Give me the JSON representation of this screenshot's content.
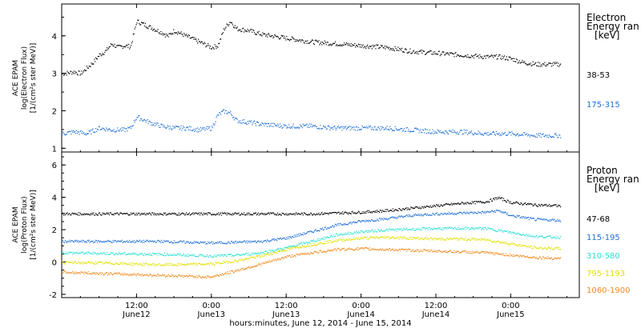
{
  "chart_data": [
    {
      "type": "scatter",
      "panel": "electron",
      "ylabel": [
        "ACE EPAM",
        "log(Electron Flux)",
        "[1/(cm²s ster MeV)]"
      ],
      "legend_title": [
        "Electron",
        "Energy ran",
        "[keV]"
      ],
      "ylim": [
        0.9,
        4.85
      ],
      "yticks": [
        "1",
        "2",
        "3",
        "4"
      ],
      "x_hours_range": [
        0,
        83
      ],
      "series": [
        {
          "name": "38-53",
          "color": "#000000",
          "x": [
            0,
            2,
            3,
            5,
            6,
            7,
            8,
            9,
            10,
            11,
            12,
            14,
            16,
            17,
            18,
            20,
            22,
            24,
            25,
            26,
            27,
            28,
            30,
            32,
            34,
            36,
            40,
            44,
            48,
            52,
            56,
            60,
            64,
            68,
            70,
            72,
            74,
            76,
            78,
            80
          ],
          "y": [
            3.0,
            3.05,
            3.0,
            3.3,
            3.5,
            3.6,
            3.8,
            3.7,
            3.75,
            3.72,
            4.4,
            4.25,
            4.1,
            4.0,
            4.15,
            4.0,
            3.85,
            3.7,
            3.75,
            4.2,
            4.4,
            4.2,
            4.15,
            4.05,
            4.0,
            3.95,
            3.85,
            3.8,
            3.75,
            3.7,
            3.6,
            3.55,
            3.5,
            3.45,
            3.45,
            3.4,
            3.3,
            3.25,
            3.25,
            3.25
          ]
        },
        {
          "name": "175-315",
          "color": "#1f6fd6",
          "x": [
            0,
            2,
            4,
            6,
            8,
            10,
            11,
            12,
            14,
            16,
            18,
            20,
            22,
            24,
            25,
            26,
            27,
            28,
            30,
            32,
            36,
            40,
            44,
            48,
            52,
            56,
            60,
            64,
            68,
            72,
            76,
            80
          ],
          "y": [
            1.4,
            1.45,
            1.4,
            1.55,
            1.5,
            1.5,
            1.55,
            1.85,
            1.7,
            1.6,
            1.55,
            1.55,
            1.5,
            1.55,
            1.9,
            2.0,
            1.95,
            1.75,
            1.7,
            1.65,
            1.6,
            1.6,
            1.55,
            1.55,
            1.55,
            1.5,
            1.45,
            1.45,
            1.4,
            1.4,
            1.35,
            1.35
          ]
        }
      ]
    },
    {
      "type": "scatter",
      "panel": "proton",
      "ylabel": [
        "ACE EPAM",
        "log(Proton Flux)",
        "[1/(cm²s ster MeV)]"
      ],
      "legend_title": [
        "Proton",
        "Energy ran",
        "[keV]"
      ],
      "ylim": [
        -2.2,
        6.8
      ],
      "yticks": [
        "-2",
        "0",
        "2",
        "4",
        "6"
      ],
      "x_hours_range": [
        0,
        83
      ],
      "series": [
        {
          "name": "47-68",
          "color": "#000000",
          "x": [
            0,
            8,
            16,
            24,
            32,
            40,
            44,
            48,
            52,
            56,
            60,
            64,
            68,
            70,
            72,
            76,
            80
          ],
          "y": [
            3.0,
            3.0,
            3.0,
            3.0,
            3.0,
            3.0,
            3.05,
            3.1,
            3.2,
            3.35,
            3.5,
            3.65,
            3.75,
            4.0,
            3.7,
            3.55,
            3.5
          ]
        },
        {
          "name": "115-195",
          "color": "#1f6fd6",
          "x": [
            0,
            8,
            16,
            24,
            32,
            36,
            40,
            44,
            48,
            52,
            56,
            60,
            64,
            68,
            70,
            72,
            76,
            80
          ],
          "y": [
            1.3,
            1.3,
            1.3,
            1.2,
            1.3,
            1.5,
            1.9,
            2.3,
            2.55,
            2.7,
            2.9,
            3.0,
            3.05,
            3.1,
            3.2,
            2.9,
            2.65,
            2.6
          ]
        },
        {
          "name": "310-580",
          "color": "#2ce0d2",
          "x": [
            0,
            8,
            16,
            24,
            28,
            32,
            36,
            40,
            44,
            48,
            52,
            56,
            60,
            64,
            68,
            72,
            76,
            80
          ],
          "y": [
            0.6,
            0.55,
            0.5,
            0.4,
            0.45,
            0.6,
            0.9,
            1.3,
            1.7,
            1.9,
            2.0,
            2.05,
            2.1,
            2.1,
            2.1,
            1.85,
            1.6,
            1.55
          ]
        },
        {
          "name": "795-1193",
          "color": "#e0e000",
          "x": [
            0,
            8,
            16,
            24,
            28,
            32,
            36,
            40,
            44,
            48,
            52,
            56,
            60,
            64,
            68,
            72,
            76,
            80
          ],
          "y": [
            0.0,
            -0.05,
            -0.15,
            -0.1,
            0.1,
            0.4,
            0.8,
            1.1,
            1.35,
            1.5,
            1.55,
            1.5,
            1.45,
            1.45,
            1.4,
            1.15,
            0.9,
            0.85
          ]
        },
        {
          "name": "1060-1900",
          "color": "#ef8a1e",
          "x": [
            0,
            8,
            16,
            24,
            28,
            32,
            36,
            40,
            44,
            48,
            52,
            56,
            60,
            64,
            68,
            72,
            76,
            80
          ],
          "y": [
            -0.6,
            -0.7,
            -0.8,
            -0.9,
            -0.5,
            -0.1,
            0.35,
            0.6,
            0.8,
            0.85,
            0.8,
            0.75,
            0.7,
            0.65,
            0.6,
            0.45,
            0.3,
            0.25
          ]
        }
      ]
    }
  ],
  "x_axis": {
    "ticks": [
      {
        "hour": 12,
        "time": "12:00",
        "date": "June12"
      },
      {
        "hour": 24,
        "time": "0:00",
        "date": "June13"
      },
      {
        "hour": 36,
        "time": "12:00",
        "date": "June13"
      },
      {
        "hour": 48,
        "time": "0:00",
        "date": "June14"
      },
      {
        "hour": 60,
        "time": "12:00",
        "date": "June14"
      },
      {
        "hour": 72,
        "time": "0:00",
        "date": "June15"
      }
    ],
    "label": "hours:minutes, June 12, 2014 - June 15, 2014"
  }
}
